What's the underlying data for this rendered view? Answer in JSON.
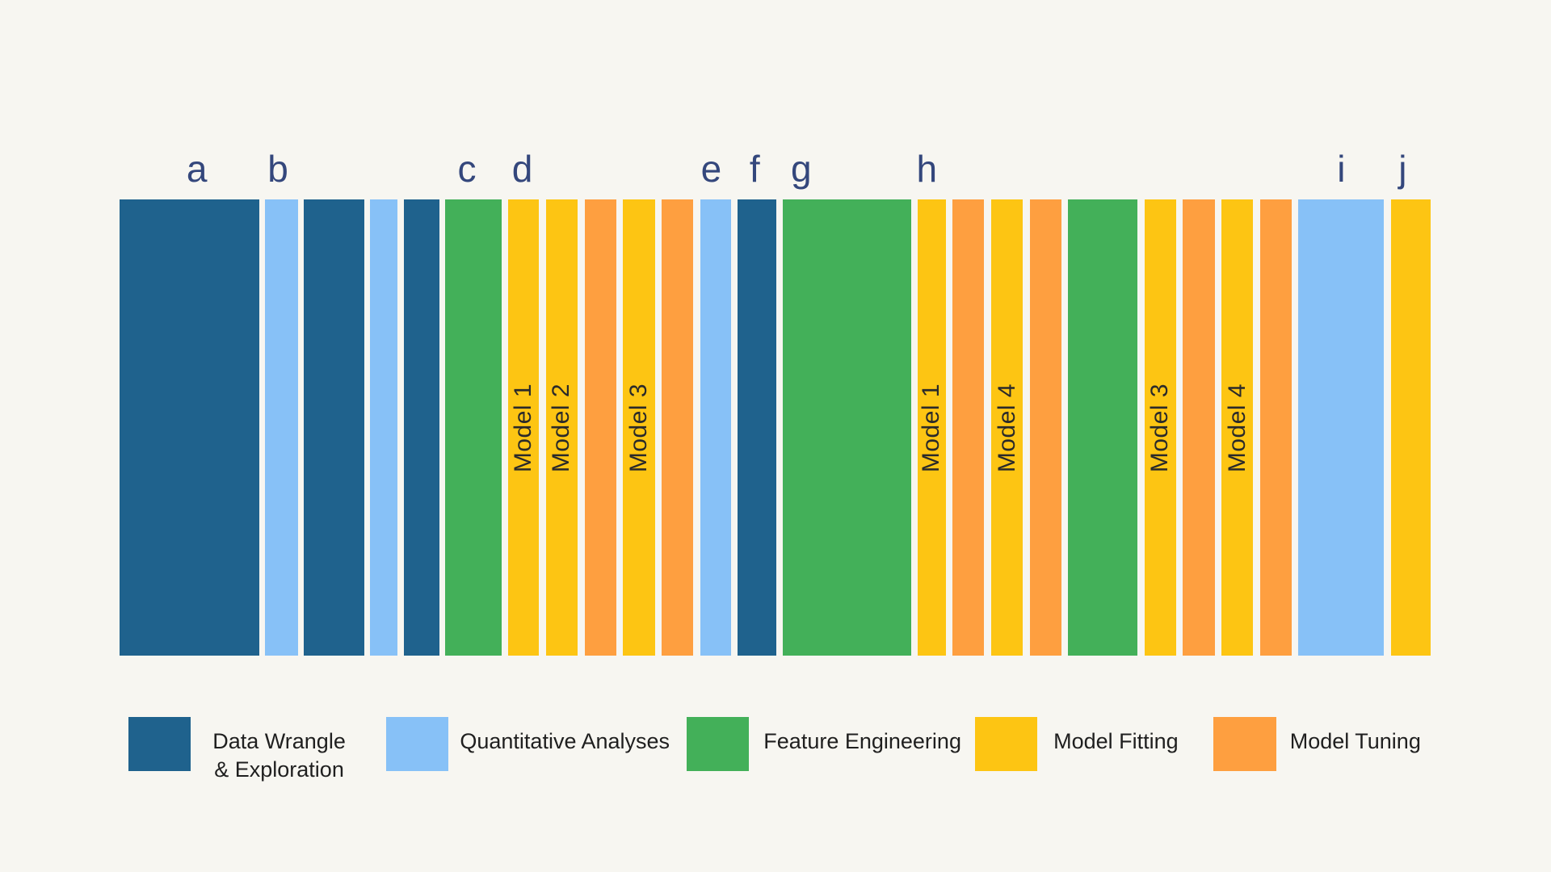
{
  "colors": {
    "data_wrangle": "#1f628d",
    "quantitative": "#87c1f7",
    "feature": "#43b059",
    "fitting": "#fdc513",
    "tuning": "#fe9f40",
    "letter": "#34477c",
    "background": "#f7f6f1"
  },
  "timeline": {
    "segments": [
      {
        "category": "data_wrangle",
        "letter": "a",
        "label": ""
      },
      {
        "category": "quantitative",
        "letter": "b",
        "label": ""
      },
      {
        "category": "data_wrangle",
        "letter": "",
        "label": ""
      },
      {
        "category": "quantitative",
        "letter": "",
        "label": ""
      },
      {
        "category": "data_wrangle",
        "letter": "",
        "label": ""
      },
      {
        "category": "feature",
        "letter": "c",
        "label": ""
      },
      {
        "category": "fitting",
        "letter": "d",
        "label": "Model 1"
      },
      {
        "category": "fitting",
        "letter": "",
        "label": "Model 2"
      },
      {
        "category": "tuning",
        "letter": "",
        "label": ""
      },
      {
        "category": "fitting",
        "letter": "",
        "label": "Model 3"
      },
      {
        "category": "tuning",
        "letter": "",
        "label": ""
      },
      {
        "category": "quantitative",
        "letter": "e",
        "label": ""
      },
      {
        "category": "data_wrangle",
        "letter": "f",
        "label": ""
      },
      {
        "category": "feature",
        "letter": "g",
        "label": ""
      },
      {
        "category": "fitting",
        "letter": "h",
        "label": "Model 1"
      },
      {
        "category": "tuning",
        "letter": "",
        "label": ""
      },
      {
        "category": "fitting",
        "letter": "",
        "label": "Model 4"
      },
      {
        "category": "tuning",
        "letter": "",
        "label": ""
      },
      {
        "category": "feature",
        "letter": "",
        "label": ""
      },
      {
        "category": "fitting",
        "letter": "",
        "label": "Model 3"
      },
      {
        "category": "tuning",
        "letter": "",
        "label": ""
      },
      {
        "category": "fitting",
        "letter": "",
        "label": "Model 4"
      },
      {
        "category": "tuning",
        "letter": "",
        "label": ""
      },
      {
        "category": "quantitative",
        "letter": "i",
        "label": ""
      },
      {
        "category": "fitting",
        "letter": "j",
        "label": ""
      }
    ]
  },
  "legend": {
    "items": [
      {
        "category": "data_wrangle",
        "lines": [
          "Data Wrangle",
          "& Exploration"
        ]
      },
      {
        "category": "quantitative",
        "lines": [
          "Quantitative Analyses"
        ]
      },
      {
        "category": "feature",
        "lines": [
          "Feature Engineering"
        ]
      },
      {
        "category": "fitting",
        "lines": [
          "Model Fitting"
        ]
      },
      {
        "category": "tuning",
        "lines": [
          "Model Tuning"
        ]
      }
    ]
  }
}
